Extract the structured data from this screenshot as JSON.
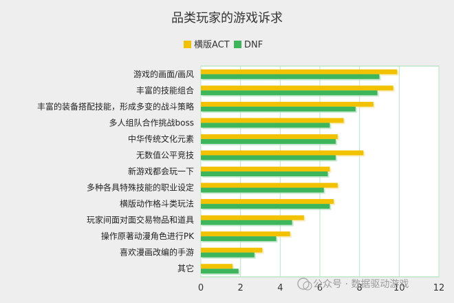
{
  "chart_data": {
    "type": "bar",
    "orientation": "horizontal",
    "title": "品类玩家的游戏诉求",
    "categories": [
      "游戏的画面/画风",
      "丰富的技能组合",
      "丰富的装备搭配技能，形成多变的战斗策略",
      "多人组队合作挑战boss",
      "中华传统文化元素",
      "无数值公平竞技",
      "新游戏都会玩一下",
      "多种各具特殊技能的职业设定",
      "横版动作格斗类玩法",
      "玩家间面对面交易物品和道具",
      "操作原著动漫角色进行PK",
      "喜欢漫画改编的手游",
      "其它"
    ],
    "series": [
      {
        "name": "横版ACT",
        "color": "#f2c200",
        "values": [
          9.9,
          9.7,
          8.7,
          7.2,
          6.9,
          8.2,
          6.5,
          6.9,
          6.7,
          5.2,
          4.5,
          3.1,
          1.6
        ]
      },
      {
        "name": "DNF",
        "color": "#3db55a",
        "values": [
          9.0,
          8.9,
          7.8,
          6.5,
          6.8,
          6.8,
          6.4,
          6.2,
          6.5,
          4.6,
          3.8,
          2.7,
          1.9
        ]
      }
    ],
    "xlim": [
      0,
      12
    ],
    "xticks": [
      "0",
      "2",
      "4",
      "6",
      "8",
      "10",
      "12"
    ],
    "grid": true,
    "legend_position": "top"
  },
  "watermark": {
    "text": "公众号 · 数据驱动游戏"
  }
}
